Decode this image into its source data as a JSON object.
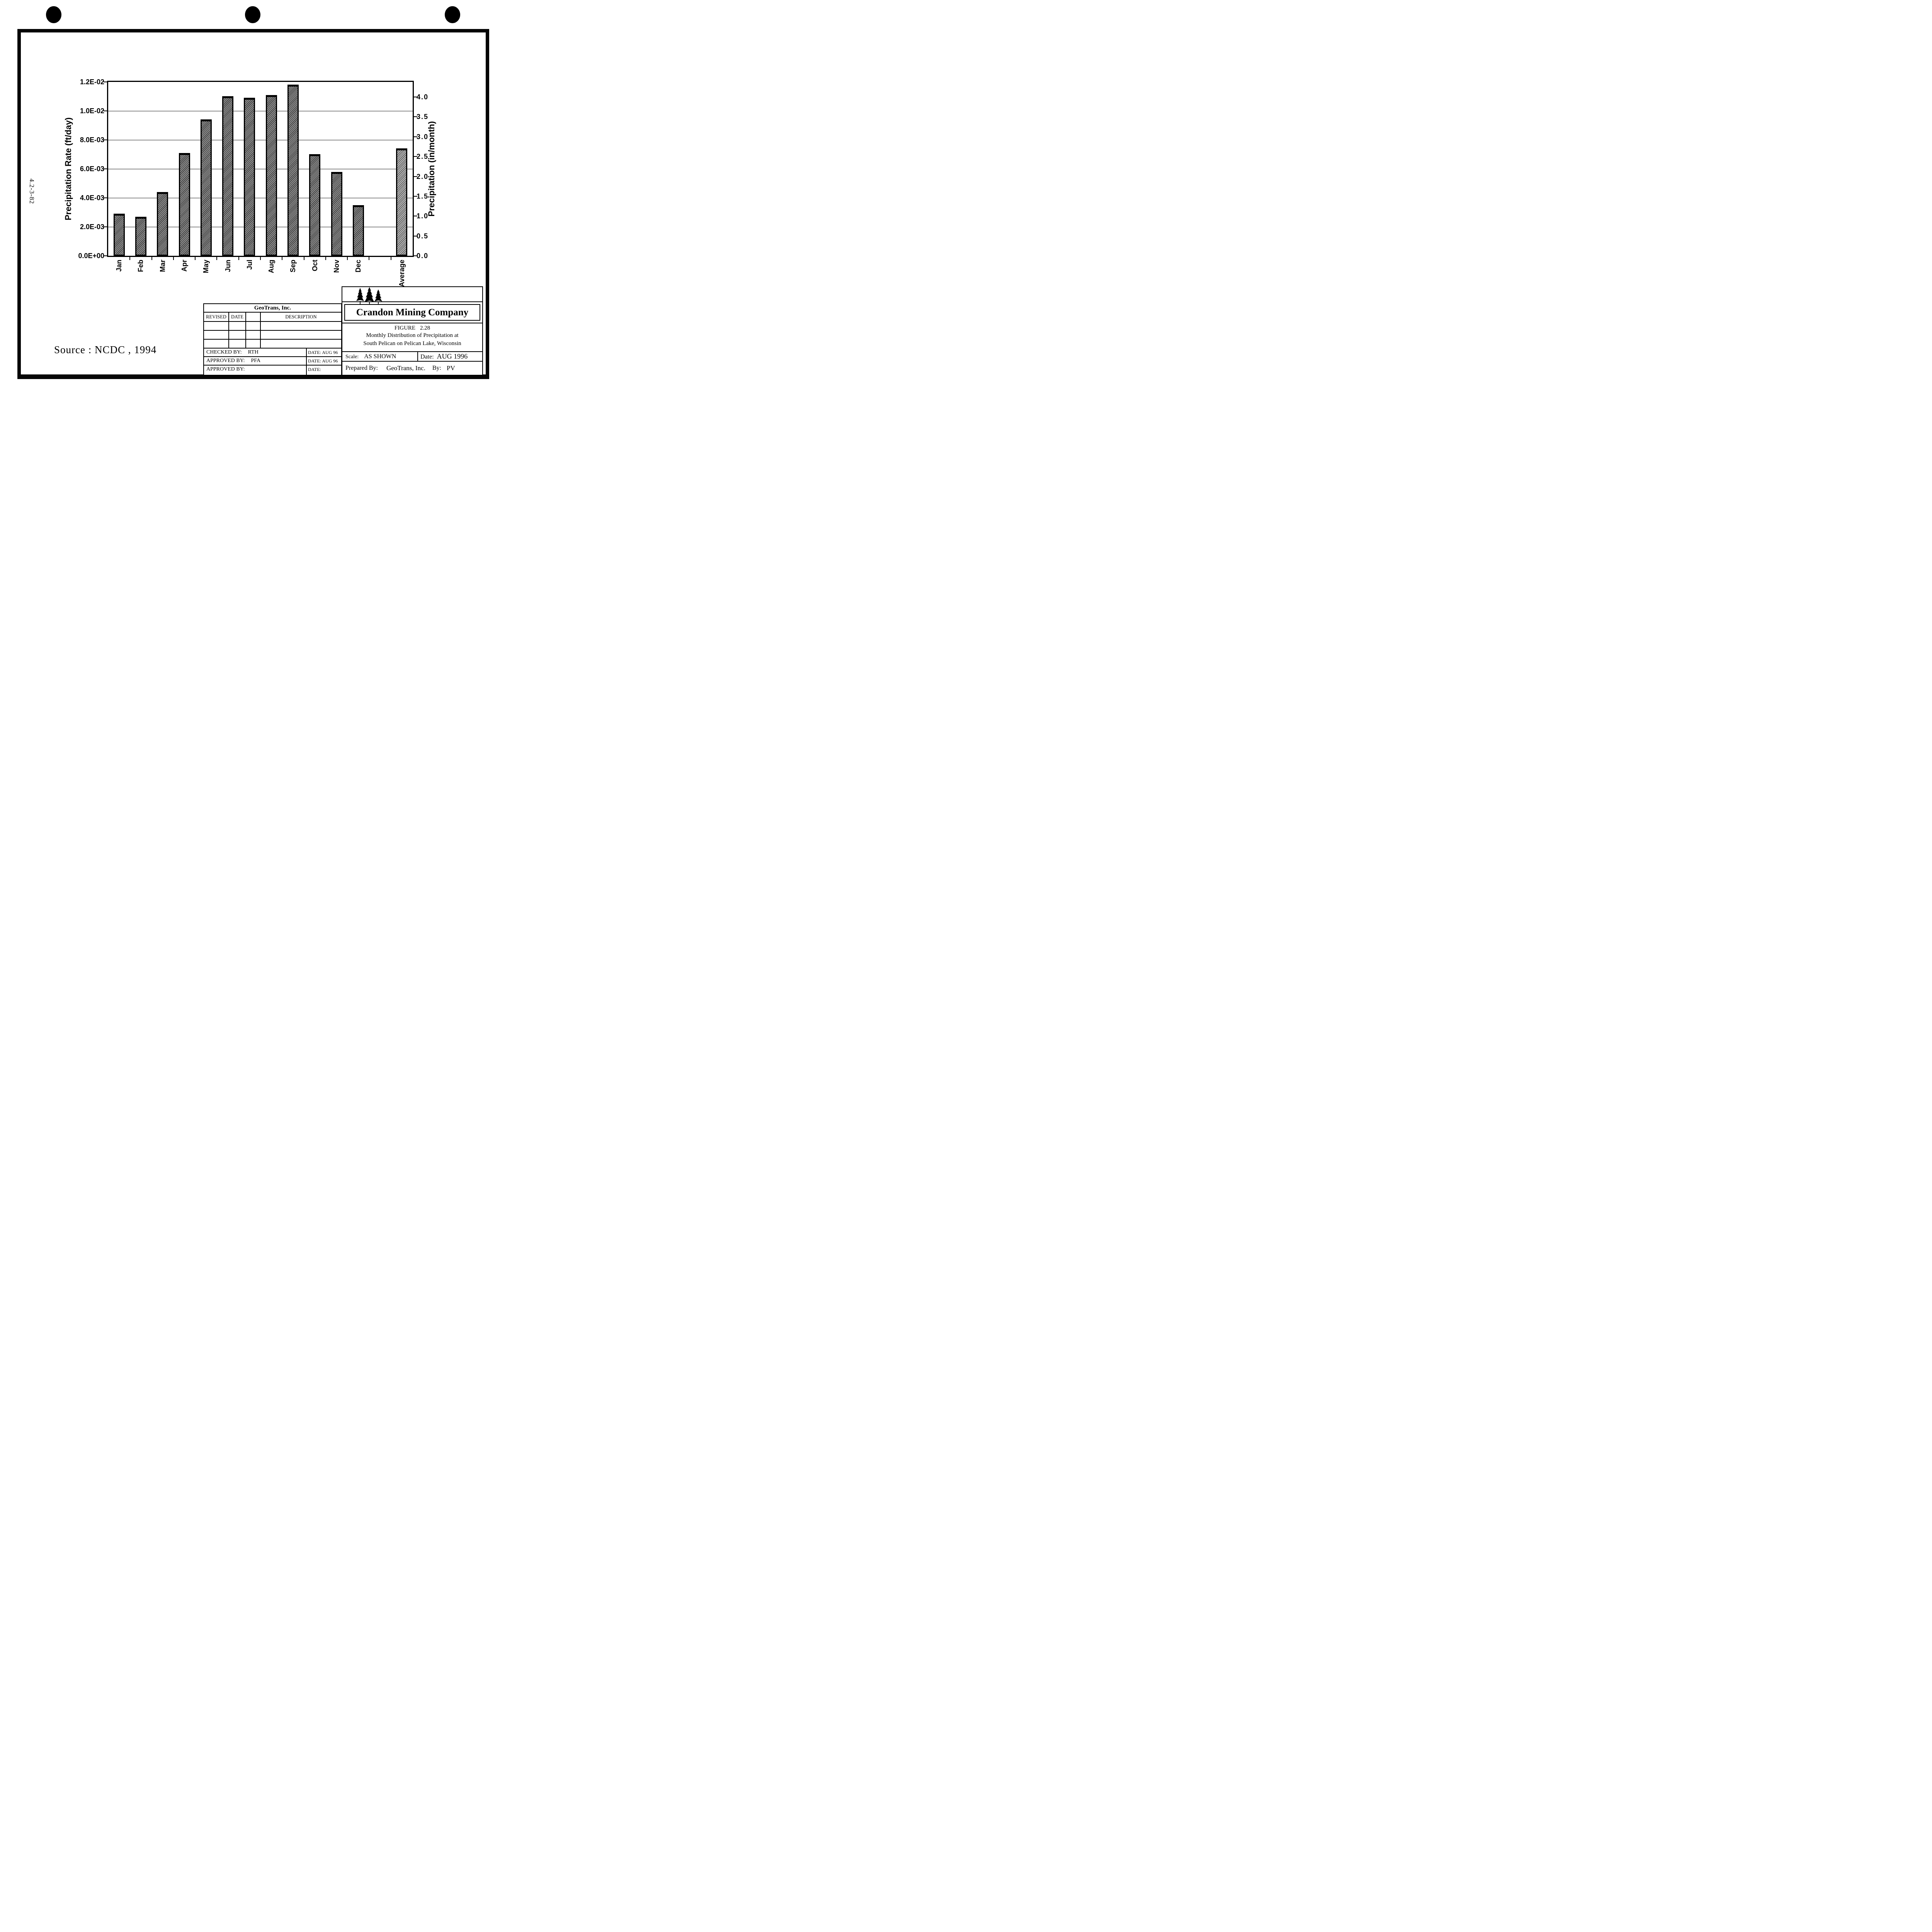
{
  "page": {
    "side_number": "4.2-3-82",
    "source_note": "Source : NCDC , 1994",
    "punch_marks": 3
  },
  "chart_data": {
    "type": "bar",
    "title": "",
    "categories": [
      "Jan",
      "Feb",
      "Mar",
      "Apr",
      "May",
      "Jun",
      "Jul",
      "Aug",
      "Sep",
      "Oct",
      "Nov",
      "Dec",
      "Average"
    ],
    "values_ft_per_day": [
      0.0029,
      0.0027,
      0.0044,
      0.0071,
      0.0094,
      0.011,
      0.0109,
      0.0111,
      0.0118,
      0.007,
      0.0058,
      0.0035,
      0.0074
    ],
    "ylabel": "Precipitation Rate (ft/day)",
    "ylabel_right": "Precipitation (in/month)",
    "xlabel": "",
    "ylim": [
      0,
      0.012
    ],
    "left_ticks": [
      "1.2E-02",
      "1.0E-02",
      "8.0E-03",
      "6.0E-03",
      "4.0E-03",
      "2.0E-03",
      "0.0E+00"
    ],
    "right_ticks": [
      "4.0",
      "3.5",
      "3.0",
      "2.5",
      "2.0",
      "1.5",
      "1.0",
      "0.5",
      "0.0"
    ],
    "right_axis_max_equivalent": 4.38,
    "grid": true,
    "legend": "none",
    "gap_slot_before_average": true,
    "bar_fill": "black diagonal hatch",
    "accent_color": "#000000"
  },
  "titleblock": {
    "geotrans": {
      "company": "GeoTrans, Inc.",
      "columns": [
        "REVISED",
        "DATE",
        "",
        "DESCRIPTION"
      ],
      "empty_rows": 3,
      "rows": [
        {
          "label": "CHECKED BY:",
          "value": "RTH",
          "date_label": "DATE:",
          "date": "AUG 96"
        },
        {
          "label": "APPROVED BY:",
          "value": "PFA",
          "date_label": "DATE:",
          "date": "AUG 96"
        },
        {
          "label": "APPROVED BY:",
          "value": "",
          "date_label": "DATE:",
          "date": ""
        }
      ]
    },
    "crandon": {
      "logo_icon": "pine-trees-icon",
      "company": "Crandon Mining Company",
      "figure_label": "FIGURE 2.28",
      "figure_title_line1": "Monthly Distribution of Precipitation at",
      "figure_title_line2": "South Pelican on Pelican Lake, Wisconsin",
      "scale_label": "Scale:",
      "scale_value": "AS SHOWN",
      "date_label": "Date:",
      "date_value": "AUG 1996",
      "prepared_label": "Prepared By:",
      "prepared_value": "GeoTrans, Inc.",
      "by_label": "By:",
      "by_value": "PV"
    }
  }
}
